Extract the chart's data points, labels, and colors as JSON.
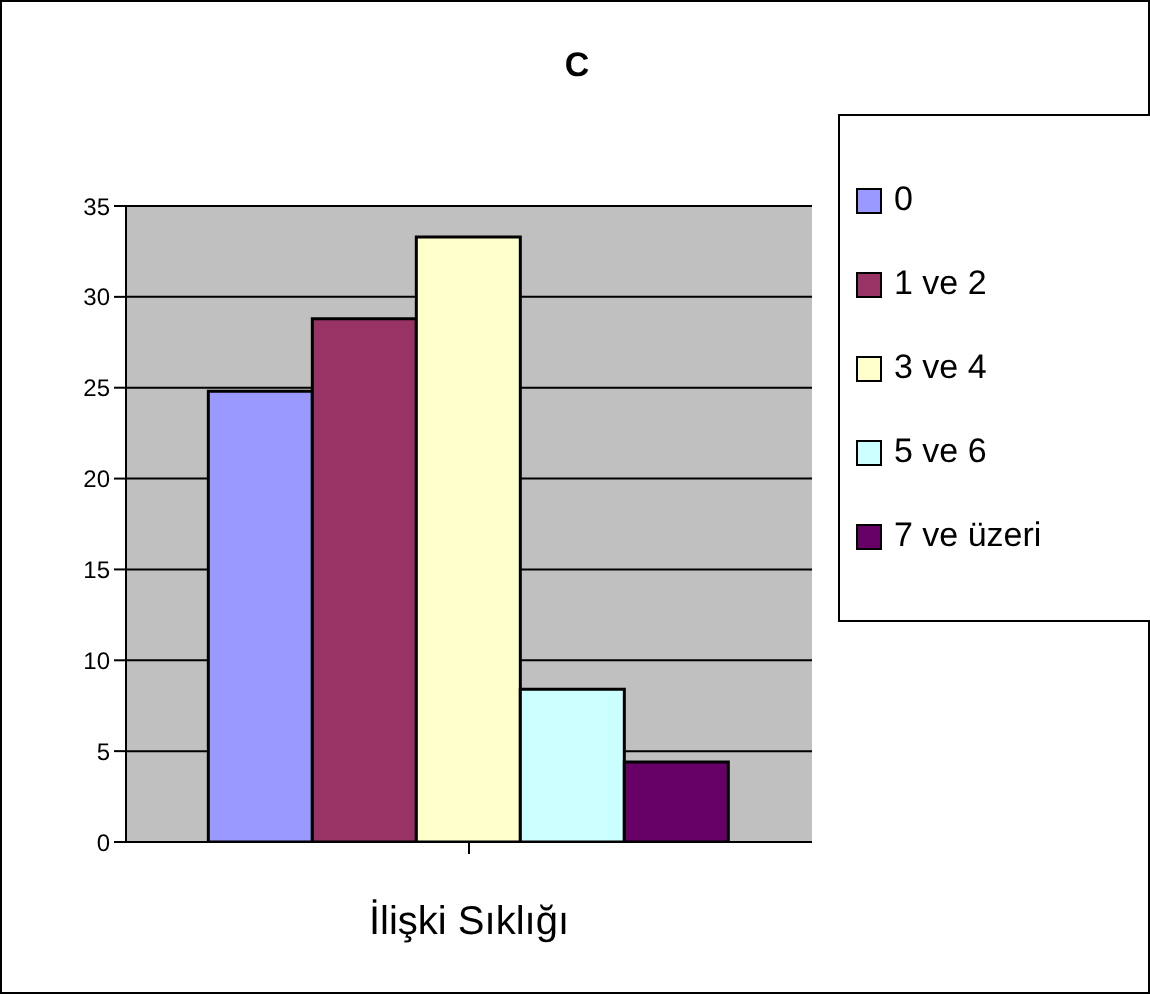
{
  "chart_data": {
    "type": "bar",
    "title": "C",
    "xlabel": "İlişki Sıklığı",
    "categories": [
      null
    ],
    "series": [
      {
        "name": "0",
        "color": "#9999ff",
        "values": [
          24.8
        ]
      },
      {
        "name": "1 ve 2",
        "color": "#993366",
        "values": [
          28.8
        ]
      },
      {
        "name": "3 ve 4",
        "color": "#ffffcc",
        "values": [
          33.3
        ]
      },
      {
        "name": "5 ve 6",
        "color": "#ccffff",
        "values": [
          8.4
        ]
      },
      {
        "name": "7 ve üzeri",
        "color": "#660066",
        "values": [
          4.4
        ]
      }
    ],
    "ylim": [
      0,
      35
    ],
    "yticks": [
      0,
      5,
      10,
      15,
      20,
      25,
      30,
      35
    ],
    "grid": "y",
    "legend": "right"
  }
}
